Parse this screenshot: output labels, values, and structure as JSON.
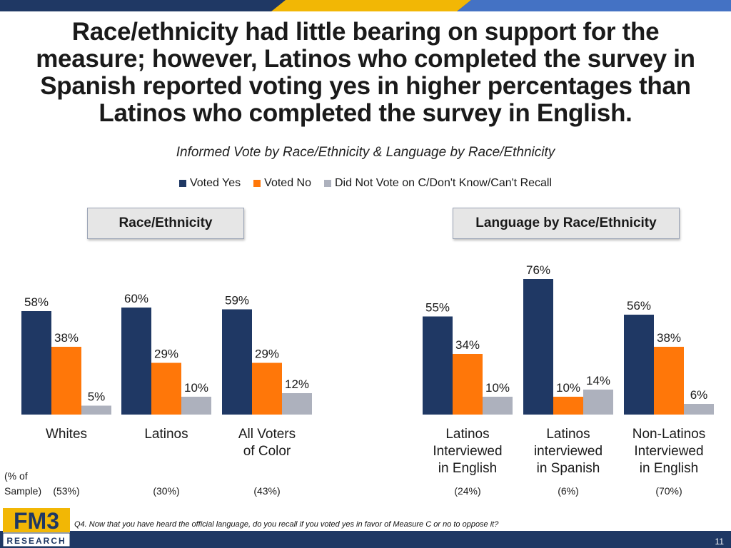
{
  "title": "Race/ethnicity had little bearing on support for the measure; however, Latinos who completed the survey in Spanish reported voting yes in higher percentages than Latinos who completed the survey in English.",
  "subtitle": "Informed Vote by Race/Ethnicity & Language by Race/Ethnicity",
  "colors": {
    "yes": "#1f3864",
    "no": "#ff7709",
    "dnv": "#adb1bd",
    "navy": "#1f3864",
    "gold": "#f2b705",
    "blue": "#4472c4"
  },
  "sections": {
    "left": "Race/Ethnicity",
    "right": "Language by Race/Ethnicity"
  },
  "sample_note": {
    "line1": "(% of",
    "line2": "Sample)"
  },
  "footnote": "Q4. Now that you have heard the official language, do you recall if you voted yes in favor of Measure C or no to oppose it?",
  "page_number": "11",
  "logo": {
    "top": "FM3",
    "bottom": "RESEARCH"
  },
  "chart_data": {
    "type": "bar",
    "title": "Informed Vote by Race/Ethnicity & Language by Race/Ethnicity",
    "legend": [
      "Voted Yes",
      "Voted No",
      "Did Not Vote on C/Don't Know/Can't Recall"
    ],
    "ylim": [
      0,
      100
    ],
    "groups": [
      {
        "label": [
          "Whites"
        ],
        "sample": "(53%)",
        "values": [
          58,
          38,
          5
        ]
      },
      {
        "label": [
          "Latinos"
        ],
        "sample": "(30%)",
        "values": [
          60,
          29,
          10
        ]
      },
      {
        "label": [
          "All Voters",
          "of Color"
        ],
        "sample": "(43%)",
        "values": [
          59,
          29,
          12
        ]
      },
      {
        "label": [
          "Latinos",
          "Interviewed",
          "in English"
        ],
        "sample": "(24%)",
        "values": [
          55,
          34,
          10
        ]
      },
      {
        "label": [
          "Latinos",
          "interviewed",
          "in Spanish"
        ],
        "sample": "(6%)",
        "values": [
          76,
          10,
          14
        ]
      },
      {
        "label": [
          "Non-Latinos",
          "Interviewed",
          "in English"
        ],
        "sample": "(70%)",
        "values": [
          56,
          38,
          6
        ]
      }
    ]
  }
}
